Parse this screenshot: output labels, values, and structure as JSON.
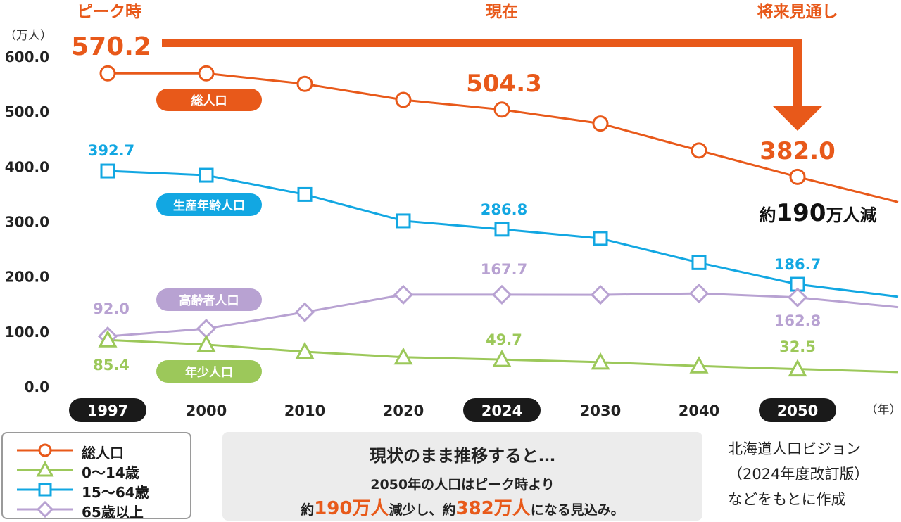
{
  "chart_data": {
    "type": "line",
    "categories": [
      "1997",
      "2000",
      "2010",
      "2020",
      "2024",
      "2030",
      "2040",
      "2050"
    ],
    "series": [
      {
        "name": "総人口",
        "legend": "総人口",
        "color": "#e8591a",
        "marker": "circle",
        "values": [
          570.2,
          570.2,
          551.0,
          522.0,
          504.3,
          479.0,
          430.0,
          382.0
        ],
        "tail_end": 336.0
      },
      {
        "name": "生産年齢人口",
        "legend": "15〜64歳",
        "color": "#12a7e2",
        "marker": "square",
        "values": [
          392.7,
          385.0,
          350.0,
          302.0,
          286.8,
          270.0,
          226.0,
          186.7
        ],
        "tail_end": 164.0
      },
      {
        "name": "高齢者人口",
        "legend": "65歳以上",
        "color": "#b8a2d2",
        "marker": "diamond",
        "values": [
          92.0,
          106.0,
          136.0,
          167.7,
          167.7,
          167.5,
          170.0,
          162.8
        ],
        "tail_end": 145.0
      },
      {
        "name": "年少人口",
        "legend": "0〜14歳",
        "color": "#9cc85a",
        "marker": "triangle",
        "values": [
          85.4,
          77.0,
          64.0,
          54.0,
          49.7,
          45.0,
          38.0,
          32.5
        ],
        "tail_end": 27.0
      }
    ],
    "ylim": [
      0,
      600
    ],
    "y_ticks": [
      "600.0",
      "500.0",
      "400.0",
      "300.0",
      "200.0",
      "100.0",
      "0.0"
    ],
    "ylabel": "（万人）",
    "xlabel": "（年）",
    "highlight_years": [
      "1997",
      "2024",
      "2050"
    ],
    "period_labels": {
      "peak": "ピーク時",
      "now": "現在",
      "future": "将来見通し"
    },
    "data_labels": {
      "peak_total": "570.2",
      "now_total": "504.3",
      "future_total": "382.0",
      "working_1997": "392.7",
      "working_2024": "286.8",
      "working_2050": "186.7",
      "elderly_1997": "92.0",
      "elderly_2024": "167.7",
      "elderly_2050": "162.8",
      "youth_1997": "85.4",
      "youth_2024": "49.7",
      "youth_2050": "32.5"
    },
    "decrease": {
      "prefix": "約",
      "number": "190",
      "suffix": "万人減"
    }
  },
  "legend": {
    "items": [
      {
        "label": "総人口",
        "color": "#e8591a",
        "marker": "circle"
      },
      {
        "label": "0〜14歳",
        "color": "#9cc85a",
        "marker": "triangle"
      },
      {
        "label": "15〜64歳",
        "color": "#12a7e2",
        "marker": "square"
      },
      {
        "label": "65歳以上",
        "color": "#b8a2d2",
        "marker": "diamond"
      }
    ]
  },
  "summary": {
    "heading": "現状のまま推移すると…",
    "line1": "2050年の人口はピーク時より",
    "line2_a": "約",
    "line2_b": "190万人",
    "line2_c": "減少し、約",
    "line2_d": "382万人",
    "line2_e": "になる見込み。"
  },
  "source": {
    "line1": "北海道人口ビジョン",
    "line2": "（2024年度改訂版）",
    "line3": "などをもとに作成"
  }
}
